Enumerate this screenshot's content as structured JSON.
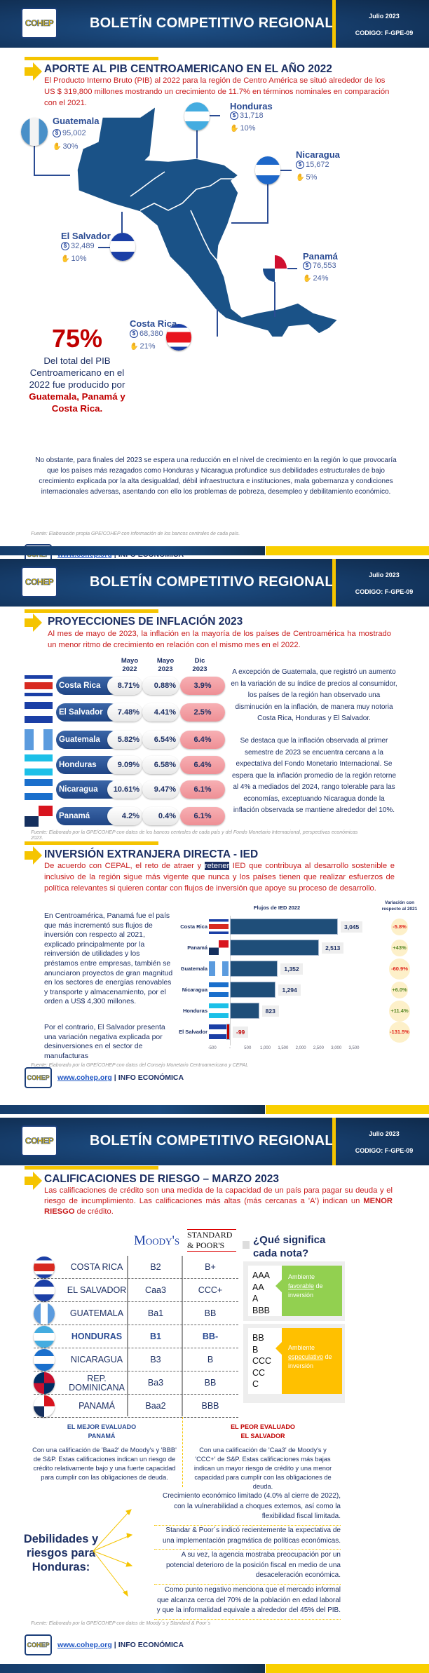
{
  "header": {
    "title": "BOLETÍN COMPETITIVO REGIONAL",
    "date": "Julio 2023",
    "code": "CODIGO: F-GPE-09",
    "logo_text": "COHEP"
  },
  "footer": {
    "link": "www.cohep.org",
    "separator": "|",
    "label": "INFO ECONÓMICA",
    "logo_text": "COHEP"
  },
  "colors": {
    "navy": "#163d6b",
    "yellow": "#f5c400",
    "red": "#c00000",
    "title_blue": "#1c2f63"
  },
  "pib": {
    "title": "APORTE AL PIB CENTROAMERICANO EN EL AÑO 2022",
    "lead": "El Producto Interno Bruto (PIB) al 2022 para la región de Centro América se situó alrededor de los US $ 319,800 millones mostrando un crecimiento de 11.7% en términos nominales en comparación con el 2021.",
    "countries": [
      {
        "name": "Guatemala",
        "value": "95,002",
        "share": "30%"
      },
      {
        "name": "Honduras",
        "value": "31,718",
        "share": "10%"
      },
      {
        "name": "Nicaragua",
        "value": "15,672",
        "share": "5%"
      },
      {
        "name": "El Salvador",
        "value": "32,489",
        "share": "10%"
      },
      {
        "name": "Panamá",
        "value": "76,553",
        "share": "24%"
      },
      {
        "name": "Costa Rica",
        "value": "68,380",
        "share": "21%"
      }
    ],
    "big_number": "75%",
    "big_text": "Del total del PIB Centroamericano en el 2022 fue producido por",
    "big_highlight": "Guatemala, Panamá y Costa Rica.",
    "paragraph": "No obstante, para finales del 2023 se espera una reducción en el nivel de crecimiento en la región lo que provocaría que los países más rezagados como Honduras y Nicaragua profundice sus debilidades estructurales de bajo crecimiento explicada por la alta desigualdad, débil infraestructura e instituciones, mala gobernanza y condiciones internacionales adversas, asentando con ello los problemas de pobreza, desempleo y debilitamiento económico.",
    "source": "Fuente: Elaboración propia GPE/COHEP con información de los bancos centrales de cada país."
  },
  "inflation": {
    "title": "PROYECCIONES DE INFLACIÓN 2023",
    "lead": "Al mes de mayo de 2023, la inflación en la mayoría de los países de Centroamérica ha mostrado un menor ritmo de crecimiento en relación con el mismo mes en el 2022.",
    "columns": [
      [
        "Mayo",
        "2022"
      ],
      [
        "Mayo",
        "2023"
      ],
      [
        "Dic",
        "2023"
      ]
    ],
    "rows": [
      {
        "country": "Costa Rica",
        "values": [
          "8.71%",
          "0.88%",
          "3.9%"
        ]
      },
      {
        "country": "El Salvador",
        "values": [
          "7.48%",
          "4.41%",
          "2.5%"
        ]
      },
      {
        "country": "Guatemala",
        "values": [
          "5.82%",
          "6.54%",
          "6.4%"
        ]
      },
      {
        "country": "Honduras",
        "values": [
          "9.09%",
          "6.58%",
          "6.4%"
        ]
      },
      {
        "country": "Nicaragua",
        "values": [
          "10.61%",
          "9.47%",
          "6.1%"
        ]
      },
      {
        "country": "Panamá",
        "values": [
          "4.2%",
          "0.4%",
          "6.1%"
        ]
      }
    ],
    "text1": "A excepción de Guatemala, que registró un aumento en la variación de su índice de precios al consumidor, los países de la región han observado una disminución en la inflación, de manera muy notoria Costa Rica, Honduras y El Salvador.",
    "text2": "Se destaca que la inflación observada al primer semestre de 2023 se encuentra cercana a la expectativa del Fondo Monetario Internacional. Se espera que la inflación promedio de la región retorne al 4% a mediados del 2024, rango tolerable para las economías, exceptuando Nicaragua donde la inflación observada se mantiene alrededor del 10%.",
    "source": "Fuente: Elaborado por la GPE/COHEP con datos de los bancos centrales de cada país y del Fondo Monetario Internacional, perspectivas económicas 2023."
  },
  "ied": {
    "title": "INVERSIÓN EXTRANJERA DIRECTA - IED",
    "lead_a": "De acuerdo con CEPAL, el reto de atraer y ",
    "lead_highlight": "retener",
    "lead_b": " IED que contribuya al desarrollo sostenible e inclusivo de la región sigue más vigente que nunca y los países tienen que realizar esfuerzos de política relevantes si quieren contar con flujos de inversión que apoye su proceso de desarrollo.",
    "text1": "En Centroamérica, Panamá fue el país que más incrementó sus flujos de inversión con respecto al 2021, explicado principalmente por la reinversión de utilidades y los préstamos entre empresas, también se anunciaron proyectos de gran magnitud en los sectores de energías renovables y transporte y almacenamiento, por el orden a US$ 4,300 millones.",
    "text2": "Por el contrario, El Salvador presenta una variación negativa explicada por desinversiones en el sector de manufacturas",
    "source": "Fuente: Elaborado por la GPE/COHEP con datos del Consejo Monetario Centroamericano y CEPAL"
  },
  "chart_data": {
    "type": "bar",
    "orientation": "horizontal",
    "title": "Flujos de IED 2022",
    "categories": [
      "Costa Rica",
      "Panamá",
      "Guatemala",
      "Nicaragua",
      "Honduras",
      "El Salvador"
    ],
    "values": [
      3045,
      2513,
      1352,
      1294,
      823,
      -99
    ],
    "value_labels": [
      "3,045",
      "2,513",
      "1,352",
      "1,294",
      "823",
      "-99"
    ],
    "xlim": [
      -500,
      3500
    ],
    "xticks": [
      "-500",
      "-",
      "500",
      "1,000",
      "1,500",
      "2,000",
      "2,500",
      "3,000",
      "3,500"
    ],
    "variation_header": "Variación con respecto al 2021",
    "variation": [
      "-5.8%",
      "+43%",
      "-60.9%",
      "+6.0%",
      "+11.4%",
      "-131.5%"
    ],
    "bar_color": "#1f4e79",
    "negative_color": "#c00000"
  },
  "risk": {
    "title": "CALIFICACIONES DE RIESGO – MARZO 2023",
    "lead_a": "Las calificaciones de crédito son una medida de la capacidad de un país para pagar su deuda y el riesgo de incumplimiento. Las calificaciones más altas (más cercanas a 'A') indican un ",
    "lead_bold": "MENOR RIESGO",
    "lead_b": " de crédito.",
    "agencies": [
      "Moody's",
      "STANDARD & POOR'S"
    ],
    "rows": [
      {
        "country": "COSTA RICA",
        "moodys": "B2",
        "sp": "B+"
      },
      {
        "country": "EL SALVADOR",
        "moodys": "Caa3",
        "sp": "CCC+"
      },
      {
        "country": "GUATEMALA",
        "moodys": "Ba1",
        "sp": "BB"
      },
      {
        "country": "HONDURAS",
        "moodys": "B1",
        "sp": "BB-"
      },
      {
        "country": "NICARAGUA",
        "moodys": "B3",
        "sp": "B"
      },
      {
        "country": "REP. DOMINICANA",
        "moodys": "Ba3",
        "sp": "BB"
      },
      {
        "country": "PANAMÁ",
        "moodys": "Baa2",
        "sp": "BBB"
      }
    ],
    "legend_title": "¿Qué significa cada nota?",
    "legend": [
      {
        "grades": [
          "AAA",
          "AA",
          "A",
          "BBB"
        ],
        "pre": "Ambiente ",
        "key": "favorable",
        "post": " de inversión",
        "color": "#92d050"
      },
      {
        "grades": [
          "BB",
          "B",
          "CCC",
          "CC",
          "C"
        ],
        "pre": "Ambiente ",
        "key": "especulativo",
        "post": " de inversión",
        "color": "#ffc000"
      }
    ],
    "best_label": "EL MEJOR EVALUADO",
    "best_country": "PANAMÁ",
    "best_text": "Con una calificación de 'Baa2' de Moody's y 'BBB' de S&P. Estas calificaciones indican un riesgo de crédito relativamente bajo y una fuerte capacidad para cumplir con las obligaciones de deuda.",
    "worst_label": "EL PEOR EVALUADO",
    "worst_country": "EL SALVADOR",
    "worst_text": "Con una calificación de 'Caa3' de Moody's y 'CCC+' de S&P. Estas calificaciones más bajas indican un mayor riesgo de crédito y una menor capacidad para cumplir con las obligaciones de deuda.",
    "weak_title": "Debilidades y riesgos para Honduras:",
    "weaknesses": [
      "Crecimiento económico limitado (4.0% al cierre de 2022), con la vulnerabilidad a choques externos, así como la flexibilidad fiscal limitada.",
      "Standar & Poor´s indicó recientemente la expectativa de una implementación pragmática de políticas económicas.",
      "A su vez, la agencia mostraba preocupación por un potencial deterioro de la posición fiscal en medio de una desaceleración económica.",
      "Como punto negativo menciona que el mercado informal que alcanza cerca del 70% de la población en edad laboral y que la informalidad equivale a alrededor del 45% del PIB."
    ],
    "source": "Fuente: Elaborado por la GPE/COHEP con datos de Moody´s y Standard & Poor´s"
  }
}
